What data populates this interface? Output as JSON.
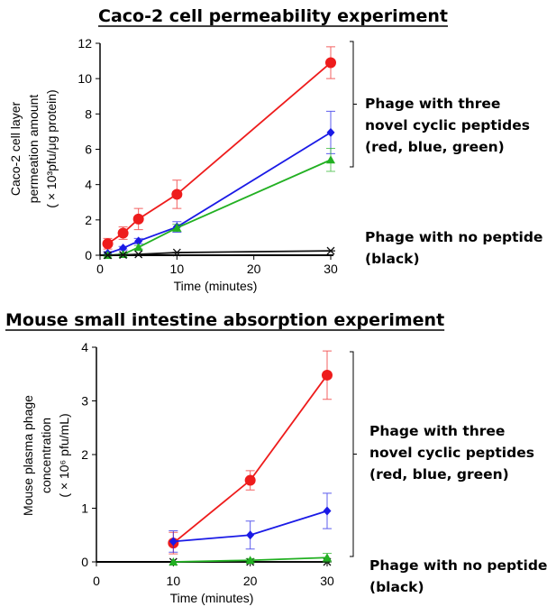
{
  "chart_data": [
    {
      "type": "line",
      "title": "Caco-2 cell permeability experiment",
      "xlabel": "Time (minutes)",
      "ylabel_lines": [
        "Caco-2 cell layer",
        "permeation amount",
        "( × 10³pfu/μg protein)"
      ],
      "xlim": [
        0,
        30
      ],
      "ylim": [
        0,
        12
      ],
      "xticks": [
        0,
        10,
        20,
        30
      ],
      "yticks": [
        0,
        2,
        4,
        6,
        8,
        10,
        12
      ],
      "series": [
        {
          "color": "#ee1c1c",
          "marker": "circle",
          "x": [
            1,
            3,
            5,
            10,
            30
          ],
          "y": [
            0.65,
            1.25,
            2.05,
            3.45,
            10.9
          ],
          "err": [
            0.3,
            0.35,
            0.6,
            0.8,
            0.9
          ]
        },
        {
          "color": "#1a1ae6",
          "marker": "diamond",
          "x": [
            1,
            3,
            5,
            10,
            30
          ],
          "y": [
            0.1,
            0.4,
            0.8,
            1.6,
            6.95
          ],
          "err": [
            0.1,
            0.1,
            0.15,
            0.3,
            1.2
          ]
        },
        {
          "color": "#22b022",
          "marker": "triangle",
          "x": [
            1,
            3,
            5,
            10,
            30
          ],
          "y": [
            0.0,
            0.05,
            0.45,
            1.55,
            5.4
          ],
          "err": [
            0.05,
            0.05,
            0.1,
            0.2,
            0.65
          ]
        },
        {
          "color": "#111111",
          "marker": "x",
          "x": [
            1,
            3,
            5,
            10,
            30
          ],
          "y": [
            0.0,
            0.02,
            0.05,
            0.15,
            0.25
          ],
          "err": [
            0,
            0,
            0,
            0,
            0
          ]
        }
      ],
      "annotations": [
        [
          "Phage with three",
          "novel cyclic peptides",
          "(red, blue, green)"
        ],
        [
          "Phage with no peptide",
          "(black)"
        ]
      ]
    },
    {
      "type": "line",
      "title": "Mouse small intestine absorption experiment",
      "xlabel": "Time (minutes)",
      "ylabel_lines": [
        "Mouse plasma phage",
        "concentration",
        "( × 10⁶ pfu/mL)"
      ],
      "xlim": [
        0,
        30
      ],
      "ylim": [
        0,
        4
      ],
      "xticks": [
        0,
        10,
        20,
        30
      ],
      "yticks": [
        0,
        1,
        2,
        3,
        4
      ],
      "series": [
        {
          "color": "#ee1c1c",
          "marker": "circle",
          "x": [
            10,
            20,
            30
          ],
          "y": [
            0.35,
            1.52,
            3.48
          ],
          "err": [
            0.2,
            0.18,
            0.45
          ]
        },
        {
          "color": "#1a1ae6",
          "marker": "diamond",
          "x": [
            10,
            20,
            30
          ],
          "y": [
            0.38,
            0.5,
            0.95
          ],
          "err": [
            0.2,
            0.26,
            0.33
          ]
        },
        {
          "color": "#111111",
          "marker": "x",
          "x": [
            10,
            20,
            30
          ],
          "y": [
            0,
            0,
            0
          ],
          "err": [
            0,
            0,
            0
          ]
        },
        {
          "color": "#22b022",
          "marker": "triangle",
          "x": [
            10,
            20,
            30
          ],
          "y": [
            0,
            0.03,
            0.08
          ],
          "err": [
            0,
            0.03,
            0.08
          ]
        }
      ],
      "annotations": [
        [
          "Phage with three",
          "novel cyclic peptides",
          "(red, blue, green)"
        ],
        [
          "Phage with no peptide",
          "(black)"
        ]
      ]
    }
  ]
}
